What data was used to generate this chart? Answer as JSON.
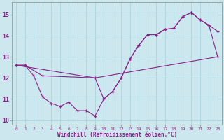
{
  "xlabel": "Windchill (Refroidissement éolien,°C)",
  "background_color": "#cce8ee",
  "grid_color": "#aad4dd",
  "line_color": "#882288",
  "xlim": [
    -0.5,
    23.5
  ],
  "ylim": [
    9.8,
    15.6
  ],
  "yticks": [
    10,
    11,
    12,
    13,
    14,
    15
  ],
  "xticks": [
    0,
    1,
    2,
    3,
    4,
    5,
    6,
    7,
    8,
    9,
    10,
    11,
    12,
    13,
    14,
    15,
    16,
    17,
    18,
    19,
    20,
    21,
    22,
    23
  ],
  "series1_x": [
    0,
    1,
    2,
    3,
    4,
    5,
    6,
    7,
    8,
    9,
    10,
    11,
    12,
    13,
    14,
    15,
    16,
    17,
    18,
    19,
    20,
    21,
    22,
    23
  ],
  "series1_y": [
    12.6,
    12.6,
    12.1,
    11.1,
    10.8,
    10.65,
    10.85,
    10.45,
    10.45,
    10.2,
    11.0,
    11.35,
    12.0,
    12.9,
    13.55,
    14.05,
    14.05,
    14.3,
    14.35,
    14.9,
    15.1,
    14.75,
    14.5,
    14.2
  ],
  "series2_x": [
    0,
    1,
    3,
    9,
    10,
    11,
    12,
    13,
    14,
    15,
    16,
    17,
    18,
    19,
    20,
    21,
    22,
    23
  ],
  "series2_y": [
    12.6,
    12.6,
    12.1,
    12.0,
    11.0,
    11.35,
    12.0,
    12.9,
    13.55,
    14.05,
    14.05,
    14.3,
    14.35,
    14.9,
    15.1,
    14.75,
    14.5,
    13.0
  ],
  "series3_x": [
    0,
    9,
    23
  ],
  "series3_y": [
    12.6,
    12.0,
    13.0
  ]
}
